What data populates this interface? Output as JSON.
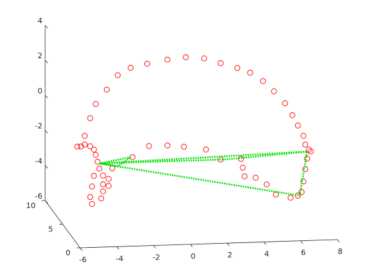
{
  "chart_data": {
    "type": "scatter3d",
    "xlim": [
      -6,
      8
    ],
    "ylim": [
      0,
      10
    ],
    "zlim": [
      -6,
      4
    ],
    "xticks": [
      -6,
      -4,
      -2,
      0,
      2,
      4,
      6,
      8
    ],
    "yticks": [
      0,
      5,
      10
    ],
    "zticks": [
      -6,
      -4,
      -2,
      0,
      2,
      4
    ],
    "series": [
      {
        "color": "#ff0000",
        "marker": "circle",
        "x": [
          -5.0,
          -4.8,
          -4.5,
          -4.2,
          -3.6,
          -3.0,
          -2.3,
          -1.4,
          -0.3,
          0.7,
          1.7,
          2.6,
          3.5,
          4.2,
          4.9,
          5.5,
          6.1,
          6.5,
          6.8,
          7.1,
          7.2,
          7.4,
          7.5,
          7.3,
          7.2,
          7.1,
          7.0,
          6.8,
          6.4,
          -5.2,
          -4.8,
          -4.5,
          -4.3,
          -4.2,
          -4.1,
          -4.0,
          -3.8,
          -3.8,
          -3.8,
          -3.9,
          -4.4,
          -4.5,
          -4.4,
          -4.3,
          -3.5,
          -3.5,
          -3.3,
          -2.2,
          -1.3,
          -0.3,
          0.6,
          1.8,
          2.6,
          3.7,
          3.8,
          3.9,
          4.5,
          5.1,
          5.6
        ],
        "y": [
          5,
          5,
          5,
          5,
          5,
          5,
          5,
          5,
          5,
          5,
          5,
          5,
          5,
          5,
          5,
          5,
          5,
          5,
          5,
          5,
          5,
          5,
          5,
          5,
          5,
          5,
          5,
          5,
          5,
          5,
          5,
          5,
          5,
          5,
          5,
          5,
          5,
          5,
          5,
          5,
          5,
          5,
          5,
          5,
          5,
          5,
          5,
          5,
          5,
          5,
          5,
          5,
          5,
          5,
          5,
          5,
          5,
          5,
          5
        ],
        "z": [
          -1.6,
          -1.0,
          0.0,
          0.8,
          1.6,
          2.4,
          2.8,
          3.0,
          3.2,
          3.3,
          3.2,
          2.9,
          2.6,
          2.3,
          1.8,
          1.2,
          0.5,
          -0.2,
          -0.8,
          -1.4,
          -1.9,
          -2.2,
          -2.3,
          -2.7,
          -3.3,
          -4.0,
          -4.6,
          -4.8,
          -4.9,
          -1.6,
          -1.5,
          -1.6,
          -1.8,
          -2.1,
          -2.5,
          -2.9,
          -3.3,
          -3.8,
          -4.2,
          -4.6,
          -4.9,
          -4.5,
          -3.9,
          -3.3,
          -3.5,
          -3.9,
          -2.9,
          -2.3,
          -1.7,
          -1.7,
          -1.8,
          -2.0,
          -2.6,
          -2.6,
          -3.1,
          -3.6,
          -3.7,
          -4.1,
          -4.7
        ]
      },
      {
        "color": "#00e000",
        "marker": "dot",
        "x": [
          -4.0,
          7.3,
          6.9,
          -4.0,
          -2.3,
          -3.0,
          -4.0,
          2.9,
          7.3
        ],
        "y": [
          5,
          5,
          5,
          5,
          5,
          5,
          5,
          5,
          5
        ],
        "z": [
          -2.6,
          -2.3,
          -4.8,
          -2.6,
          -2.3,
          -2.8,
          -2.6,
          -2.6,
          -2.3
        ]
      }
    ]
  }
}
